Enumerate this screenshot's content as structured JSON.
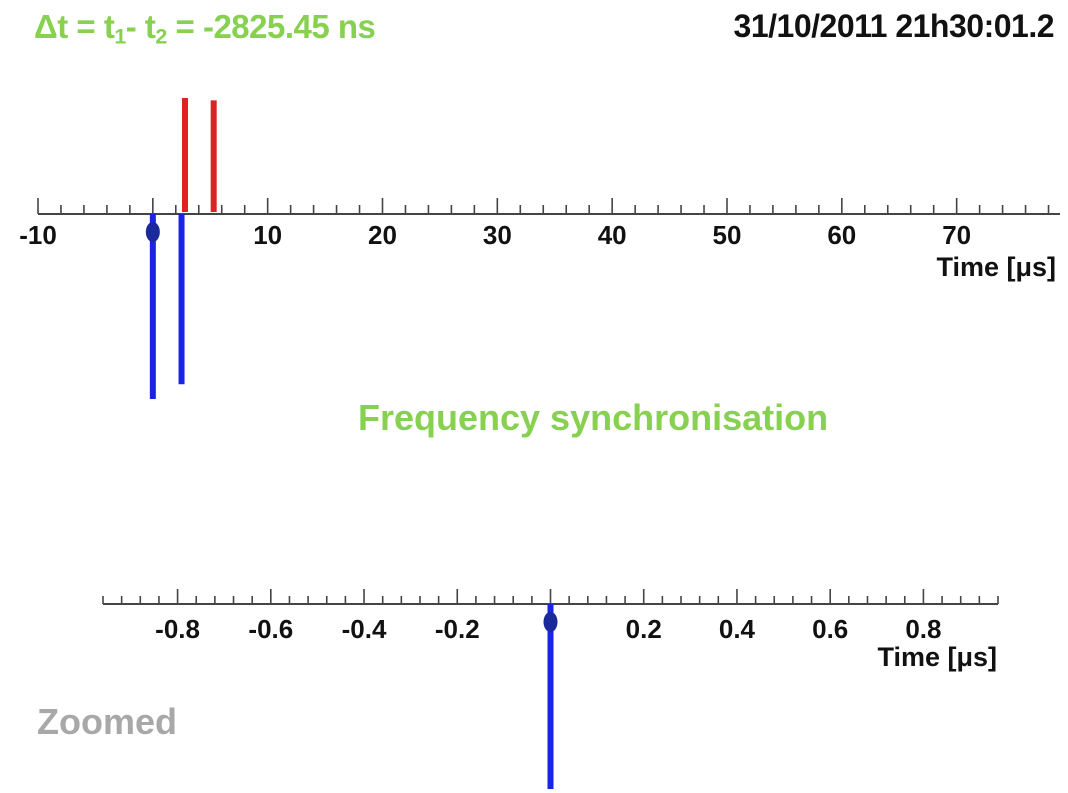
{
  "header": {
    "delta_prefix": "Δt = t",
    "delta_sub1": "1",
    "delta_mid": "- t",
    "delta_sub2": "2",
    "delta_value": " = -2825.45 ns",
    "timestamp": "31/10/2011 21h30:01.2"
  },
  "captions": {
    "frequency": "Frequency synchronisation",
    "zoomed": "Zoomed"
  },
  "colors": {
    "red_pulse": "#dd2222",
    "blue_pulse": "#1a24e6",
    "marker": "#1a2a9a",
    "axis": "#444444",
    "header_green": "#88d050",
    "caption_gray": "#a8a8a8"
  },
  "chart_data": [
    {
      "type": "scatter",
      "xlabel": "Time [μs]",
      "xlim": [
        -10,
        79
      ],
      "ticks": [
        -10,
        10,
        20,
        30,
        40,
        50,
        60,
        70
      ],
      "tick_labels": [
        "-10",
        "10",
        "20",
        "30",
        "40",
        "50",
        "60",
        "70"
      ],
      "minor_tick_step": 2,
      "marker_x": 0,
      "series": [
        {
          "direction": "up",
          "color": "red",
          "x": [
            2.8,
            5.3
          ],
          "heights": [
            1.0,
            0.98
          ]
        },
        {
          "direction": "down",
          "color": "blue",
          "x": [
            0,
            2.5
          ],
          "heights": [
            1.0,
            0.92
          ]
        }
      ]
    },
    {
      "type": "scatter",
      "xlabel": "Time [μs]",
      "xlim": [
        -0.96,
        0.96
      ],
      "ticks": [
        -0.8,
        -0.6,
        -0.4,
        -0.2,
        0.2,
        0.4,
        0.6,
        0.8
      ],
      "tick_labels": [
        "-0.8",
        "-0.6",
        "-0.4",
        "-0.2",
        "0.2",
        "0.4",
        "0.6",
        "0.8"
      ],
      "minor_tick_step": 0.04,
      "marker_x": 0,
      "series": [
        {
          "direction": "down",
          "color": "blue",
          "x": [
            0
          ],
          "heights": [
            1.0
          ]
        }
      ]
    }
  ]
}
